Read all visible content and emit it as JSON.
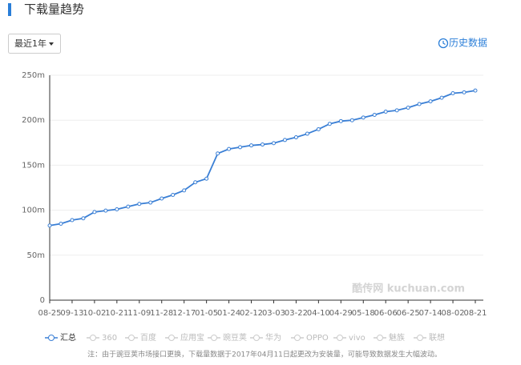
{
  "header": {
    "title": "下载量趋势",
    "range_select": "最近1年",
    "history_link": "历史数据"
  },
  "chart_data": {
    "type": "line",
    "categories": [
      "08-25",
      null,
      "09-13",
      null,
      "10-02",
      null,
      "10-21",
      null,
      "11-09",
      null,
      "11-28",
      null,
      "12-17",
      null,
      "01-05",
      null,
      "01-24",
      null,
      "02-12",
      null,
      "03-03",
      null,
      "03-22",
      null,
      "04-10",
      null,
      "04-29",
      null,
      "05-18",
      null,
      "06-06",
      null,
      "06-25",
      null,
      "07-14",
      null,
      "08-02",
      null,
      "08-21"
    ],
    "series": [
      {
        "name": "汇总",
        "color": "#3a7fd5",
        "values": [
          83,
          85,
          89,
          91,
          98,
          99.5,
          101,
          104,
          107,
          108.5,
          113,
          117,
          122,
          131,
          135,
          163,
          168,
          170,
          172,
          173,
          174.5,
          178,
          181,
          185,
          190,
          196,
          199,
          200,
          203,
          206,
          209.5,
          211,
          214,
          218,
          221,
          225,
          230,
          231,
          233
        ]
      }
    ],
    "hidden_series": [
      {
        "name": "360"
      },
      {
        "name": "百度"
      },
      {
        "name": "应用宝"
      },
      {
        "name": "豌豆荚"
      },
      {
        "name": "华为"
      },
      {
        "name": "OPPO"
      },
      {
        "name": "vivo"
      },
      {
        "name": "魅族"
      },
      {
        "name": "联想"
      }
    ],
    "ylim": [
      0,
      250
    ],
    "yticks": [
      0,
      {
        "value": 50,
        "label": "50m"
      },
      {
        "value": 100,
        "label": "100m"
      },
      {
        "value": 150,
        "label": "150m"
      },
      {
        "value": 200,
        "label": "200m"
      },
      {
        "value": 250,
        "label": "250m"
      }
    ],
    "grid": true,
    "watermark": "酷传网 kuchuan.com",
    "note": "注：由于豌豆荚市场接口更换，下载量数据于2017年04月11日起更改为安装量，可能导致数据发生大幅波动。"
  }
}
